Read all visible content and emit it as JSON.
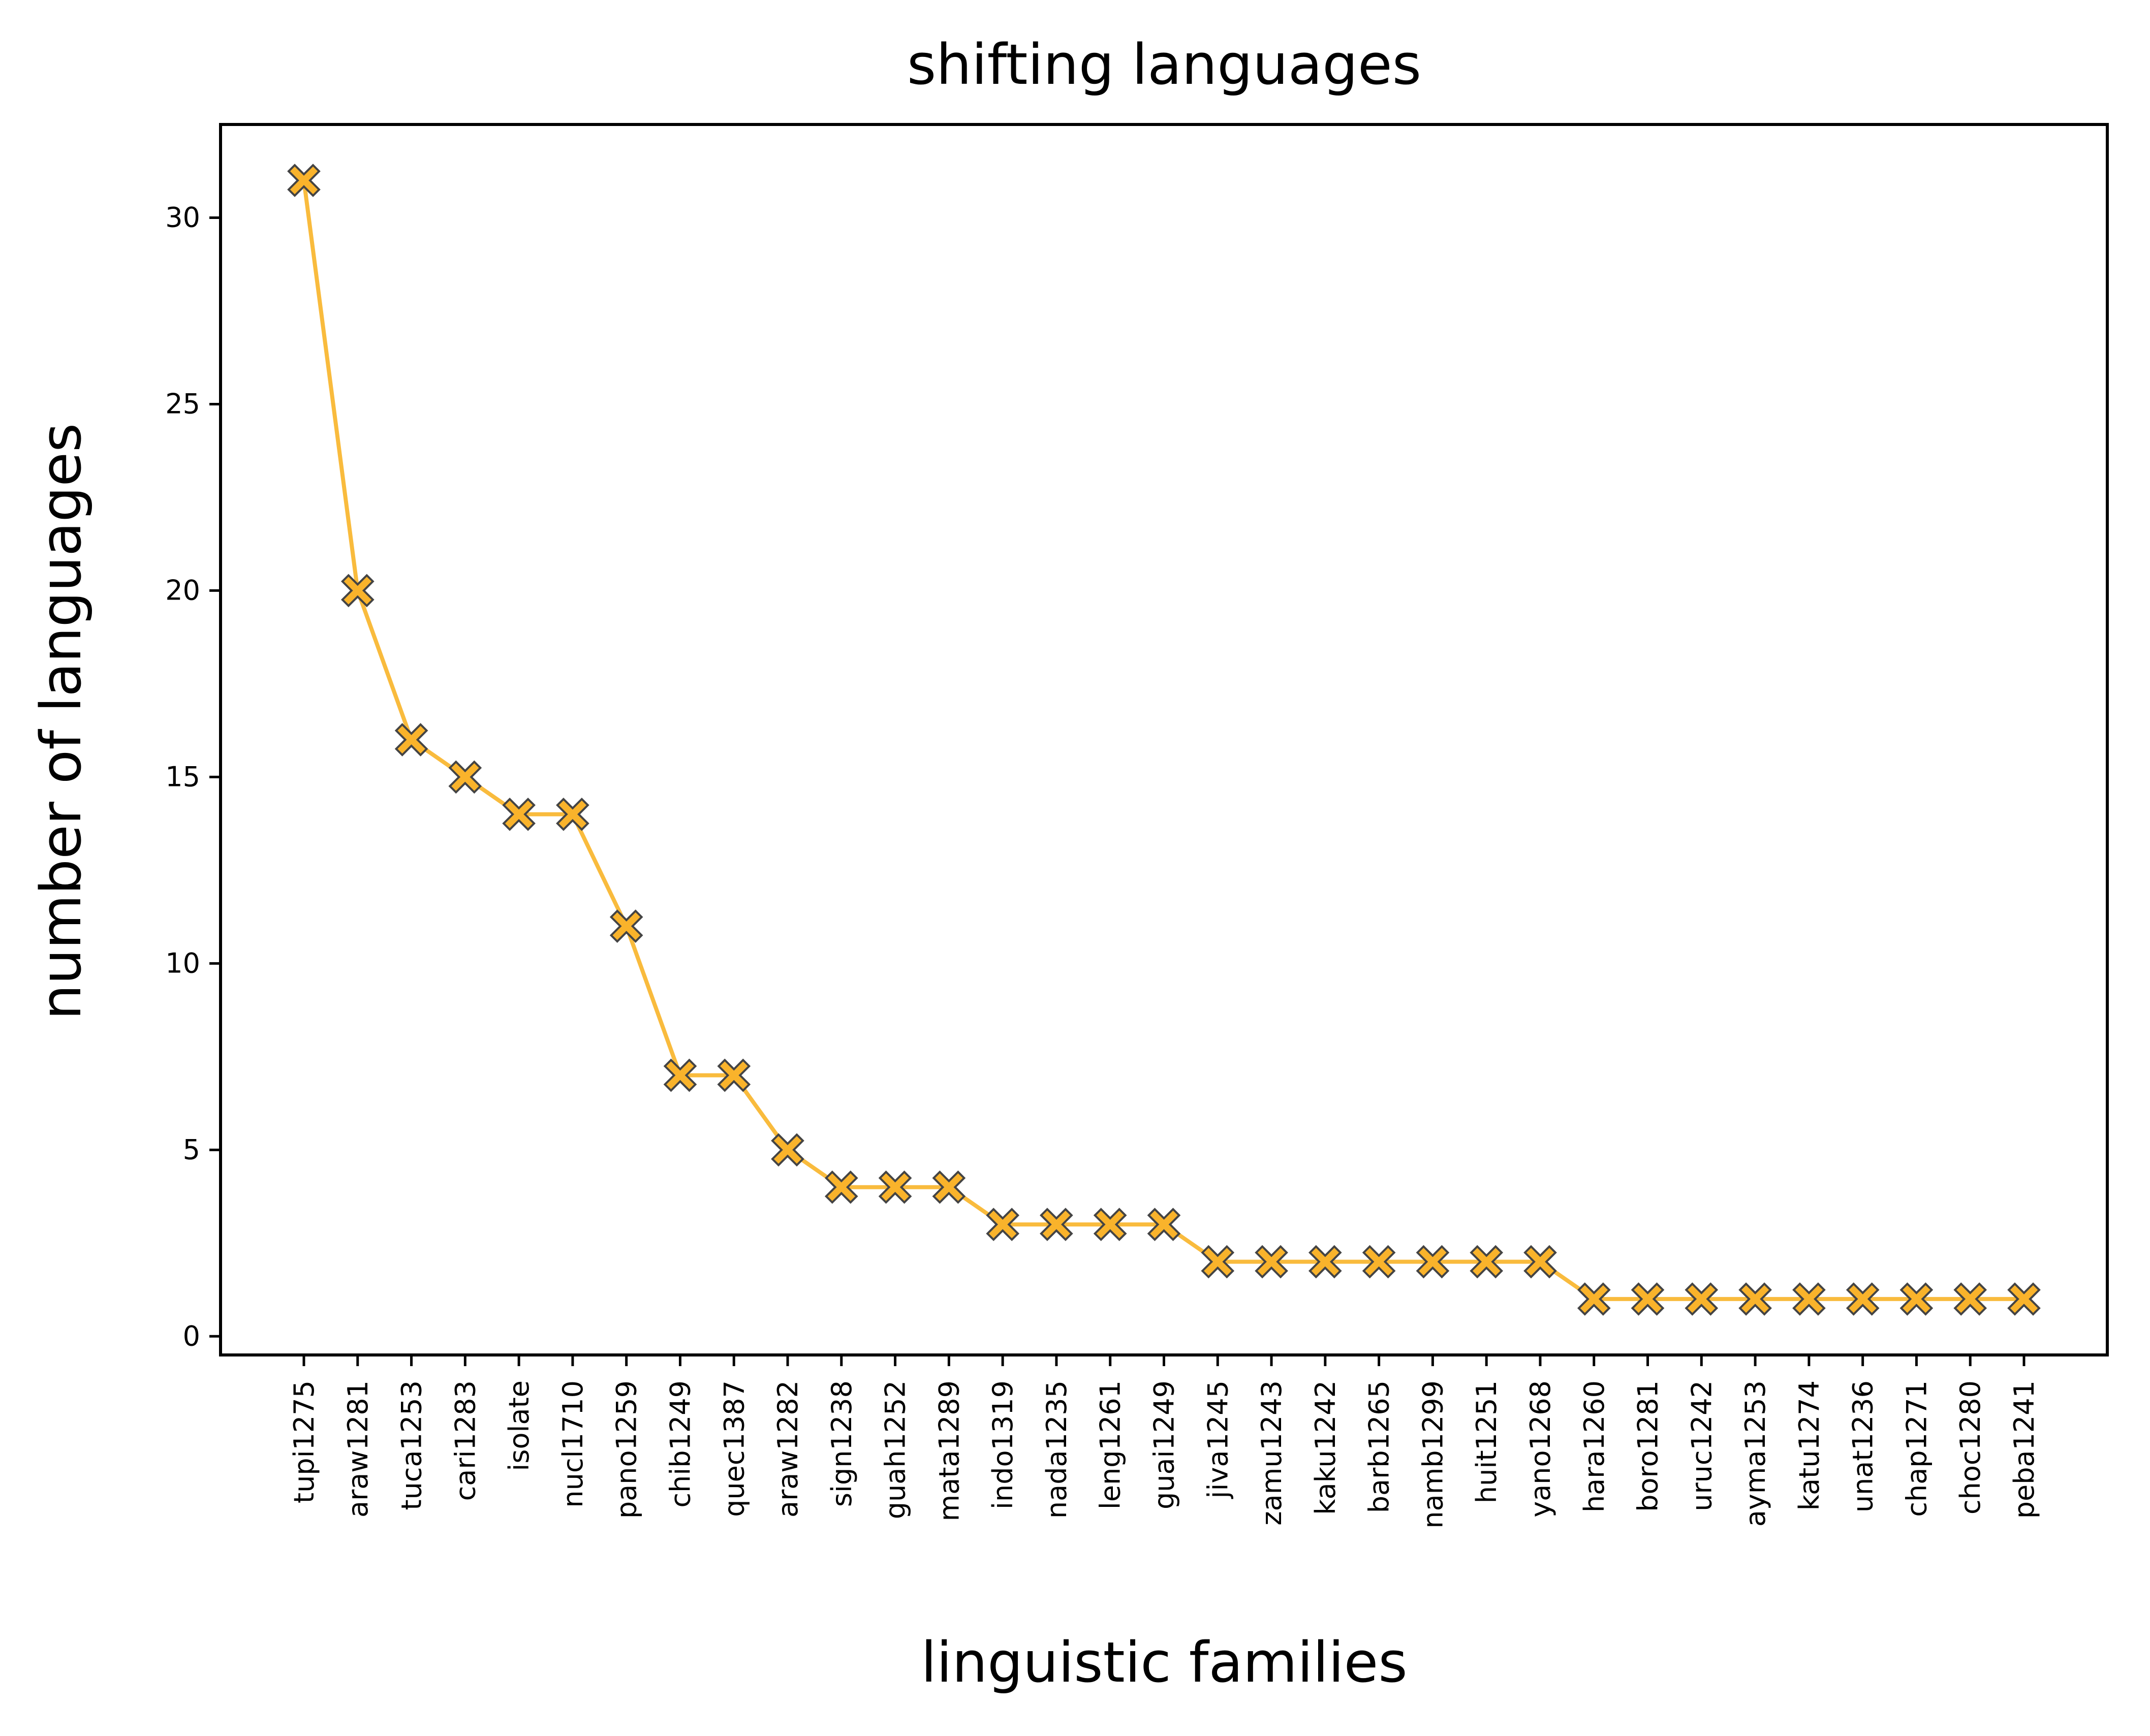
{
  "chart_data": {
    "type": "line",
    "title": "shifting languages",
    "xlabel": "linguistic families",
    "ylabel": "number of languages",
    "categories": [
      "tupi1275",
      "araw1281",
      "tuca1253",
      "cari1283",
      "isolate",
      "nucl1710",
      "pano1259",
      "chib1249",
      "quec1387",
      "araw1282",
      "sign1238",
      "guah1252",
      "mata1289",
      "indo1319",
      "nada1235",
      "leng1261",
      "guai1249",
      "jiva1245",
      "zamu1243",
      "kaku1242",
      "barb1265",
      "namb1299",
      "huit1251",
      "yano1268",
      "hara1260",
      "boro1281",
      "uruc1242",
      "ayma1253",
      "katu1274",
      "unat1236",
      "chap1271",
      "choc1280",
      "peba1241"
    ],
    "values": [
      31,
      20,
      16,
      15,
      14,
      14,
      11,
      7,
      7,
      5,
      4,
      4,
      4,
      3,
      3,
      3,
      3,
      2,
      2,
      2,
      2,
      2,
      2,
      2,
      1,
      1,
      1,
      1,
      1,
      1,
      1,
      1,
      1
    ],
    "ylim": [
      -0.5,
      32.5
    ],
    "yticks": [
      0,
      5,
      10,
      15,
      20,
      25,
      30
    ],
    "grid": false,
    "marker": "X",
    "line_color": "#f9bb3d",
    "marker_fill": "#f9b32b",
    "marker_edge": "#444444"
  }
}
